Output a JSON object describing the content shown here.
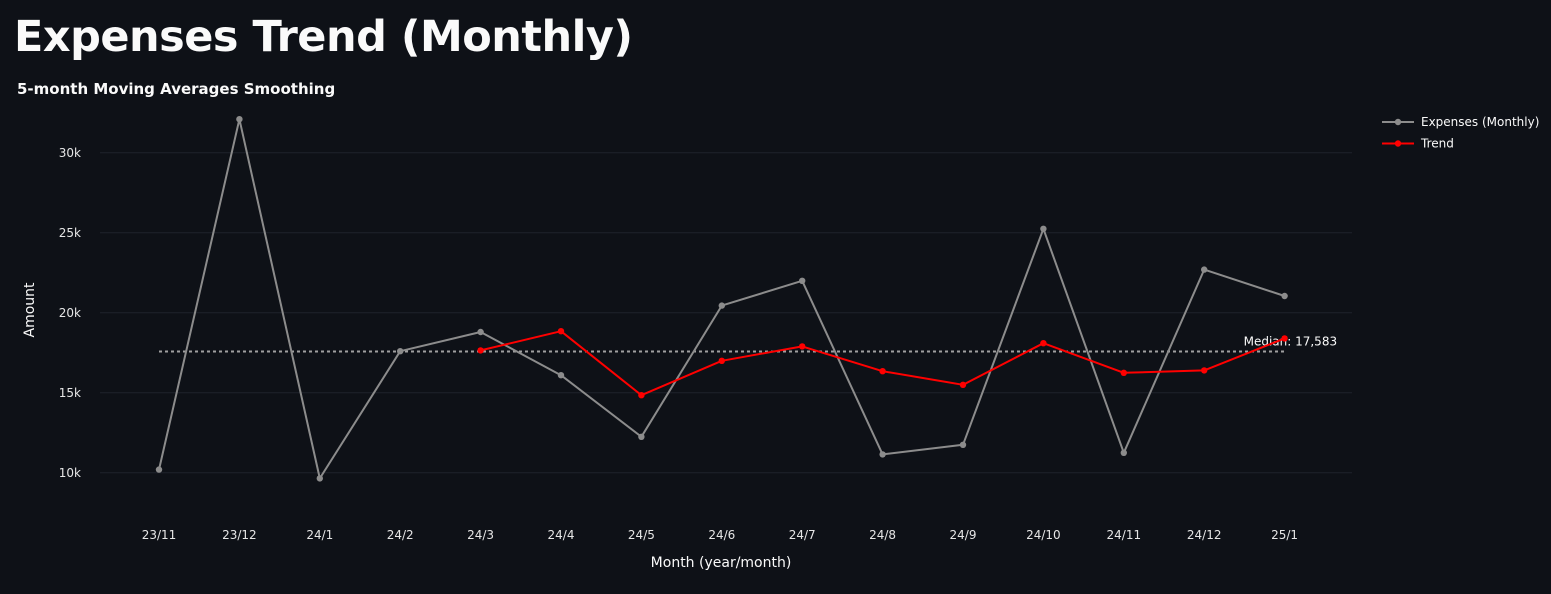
{
  "page": {
    "title": "Expenses Trend (Monthly)"
  },
  "chart_data": {
    "type": "line",
    "subtitle": "5-month Moving Averages Smoothing",
    "xlabel": "Month (year/month)",
    "ylabel": "Amount",
    "x": [
      "23/11",
      "23/12",
      "24/1",
      "24/2",
      "24/3",
      "24/4",
      "24/5",
      "24/6",
      "24/7",
      "24/8",
      "24/9",
      "24/10",
      "24/11",
      "24/12",
      "25/1"
    ],
    "ylim": [
      7800,
      32800
    ],
    "yticks": [
      10000,
      15000,
      20000,
      25000,
      30000
    ],
    "yticklabels": [
      "10k",
      "15k",
      "20k",
      "25k",
      "30k"
    ],
    "grid": true,
    "legend_position": "top-right",
    "series": [
      {
        "name": "Expenses (Monthly)",
        "color": "#8c8c8c",
        "values": [
          10200,
          32100,
          9650,
          17600,
          18800,
          16100,
          12250,
          20450,
          22000,
          11150,
          11750,
          25250,
          11250,
          22700,
          21050
        ]
      },
      {
        "name": "Trend",
        "color": "#ff0000",
        "values": [
          null,
          null,
          null,
          null,
          17650,
          18850,
          14850,
          17000,
          17900,
          16350,
          15500,
          18100,
          16250,
          16400,
          18400
        ]
      }
    ],
    "median": {
      "value": 17583,
      "label": "Median: 17,583",
      "color": "#a0a0a0",
      "style": "dotted"
    }
  }
}
